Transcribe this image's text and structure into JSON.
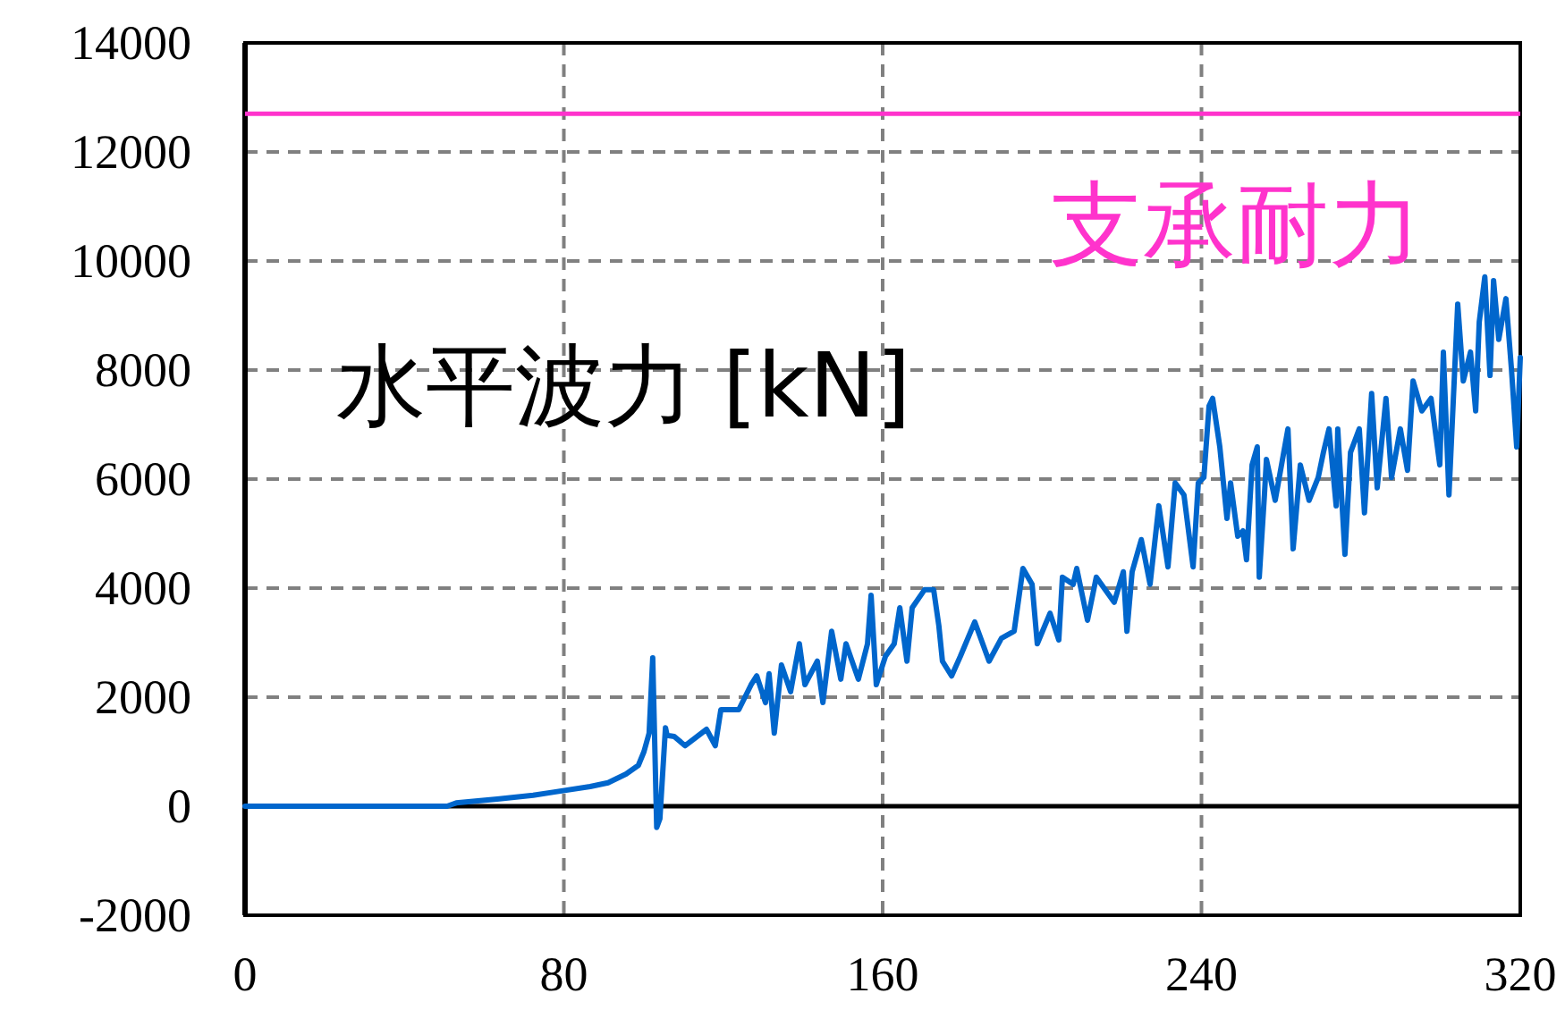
{
  "chart_data": {
    "type": "line",
    "title": "水平波力 [kN]",
    "color": "#0066cc",
    "x": [
      0,
      50.7,
      53,
      63.3,
      72.3,
      77.6,
      86.6,
      91.1,
      95.6,
      98.7,
      100.1,
      101.4,
      102.3,
      103.3,
      104.1,
      105.5,
      105.9,
      107.7,
      110.4,
      115.8,
      118.0,
      119.4,
      123.9,
      127.0,
      128.4,
      130.6,
      131.5,
      132.8,
      134.6,
      136.9,
      139.1,
      140.5,
      143.6,
      145.0,
      147.2,
      149.5,
      150.8,
      153.9,
      156.2,
      157.1,
      158.4,
      160.7,
      162.9,
      164.3,
      166.1,
      167.4,
      170.5,
      172.8,
      174.1,
      175.0,
      177.3,
      179.5,
      183.1,
      186.7,
      189.8,
      193.0,
      195.2,
      197.5,
      198.8,
      202.0,
      204.2,
      205.1,
      207.8,
      208.7,
      211.4,
      213.6,
      218.1,
      220.4,
      221.3,
      222.6,
      224.9,
      227.1,
      229.3,
      231.6,
      233.4,
      235.6,
      237.9,
      239.2,
      240.6,
      241.9,
      242.8,
      244.6,
      246.4,
      247.3,
      249.1,
      250.4,
      251.3,
      252.7,
      254.0,
      254.5,
      255.8,
      256.3,
      258.5,
      261.7,
      263.0,
      264.8,
      267.0,
      269.3,
      270.6,
      272.0,
      273.8,
      274.2,
      276.0,
      277.4,
      279.6,
      280.9,
      282.7,
      284.1,
      286.3,
      287.7,
      289.9,
      291.7,
      293.1,
      295.3,
      297.6,
      299.8,
      300.7,
      302.1,
      304.3,
      305.7,
      307.5,
      308.8,
      309.7,
      311.1,
      312.4,
      313.3,
      314.6,
      316.4,
      317.8,
      318.7,
      319.1,
      320
    ],
    "values": [
      0,
      0,
      60,
      130,
      200,
      260,
      360,
      430,
      590,
      750,
      1000,
      1340,
      2720,
      -390,
      -230,
      1440,
      1300,
      1280,
      1110,
      1410,
      1110,
      1770,
      1770,
      2230,
      2390,
      1900,
      2430,
      1340,
      2590,
      2100,
      2980,
      2230,
      2660,
      1900,
      3210,
      2330,
      2980,
      2330,
      2980,
      3870,
      2230,
      2750,
      2980,
      3640,
      2660,
      3640,
      3970,
      3970,
      3310,
      2660,
      2390,
      2750,
      3380,
      2660,
      3080,
      3210,
      4360,
      4070,
      2980,
      3540,
      3050,
      4200,
      4070,
      4360,
      3410,
      4200,
      3740,
      4300,
      3210,
      4300,
      4890,
      4070,
      5510,
      4390,
      5930,
      5710,
      4390,
      5930,
      6030,
      7340,
      7480,
      6590,
      5280,
      5930,
      4950,
      5050,
      4520,
      6260,
      6590,
      4200,
      5710,
      6360,
      5610,
      6920,
      4720,
      6260,
      5610,
      6030,
      6490,
      6920,
      5510,
      6920,
      4620,
      6490,
      6920,
      5380,
      7570,
      5840,
      7480,
      6030,
      6920,
      6160,
      7800,
      7250,
      7480,
      6260,
      8330,
      5710,
      9210,
      7800,
      8330,
      7250,
      8880,
      9710,
      7900,
      9640,
      8560,
      9310,
      8000,
      7020,
      6590,
      8230
    ],
    "xlim": [
      0,
      320
    ],
    "ylim": [
      -2000,
      14000
    ],
    "xticks": [
      0,
      80,
      160,
      240,
      320
    ],
    "yticks": [
      -2000,
      0,
      2000,
      4000,
      6000,
      8000,
      10000,
      12000,
      14000
    ],
    "grid": true,
    "ref_lines": [
      {
        "axis": "y",
        "value": 12700,
        "label": "支承耐力",
        "color": "#ff33cc"
      },
      {
        "axis": "y",
        "value": 0,
        "color": "#000000"
      }
    ]
  }
}
